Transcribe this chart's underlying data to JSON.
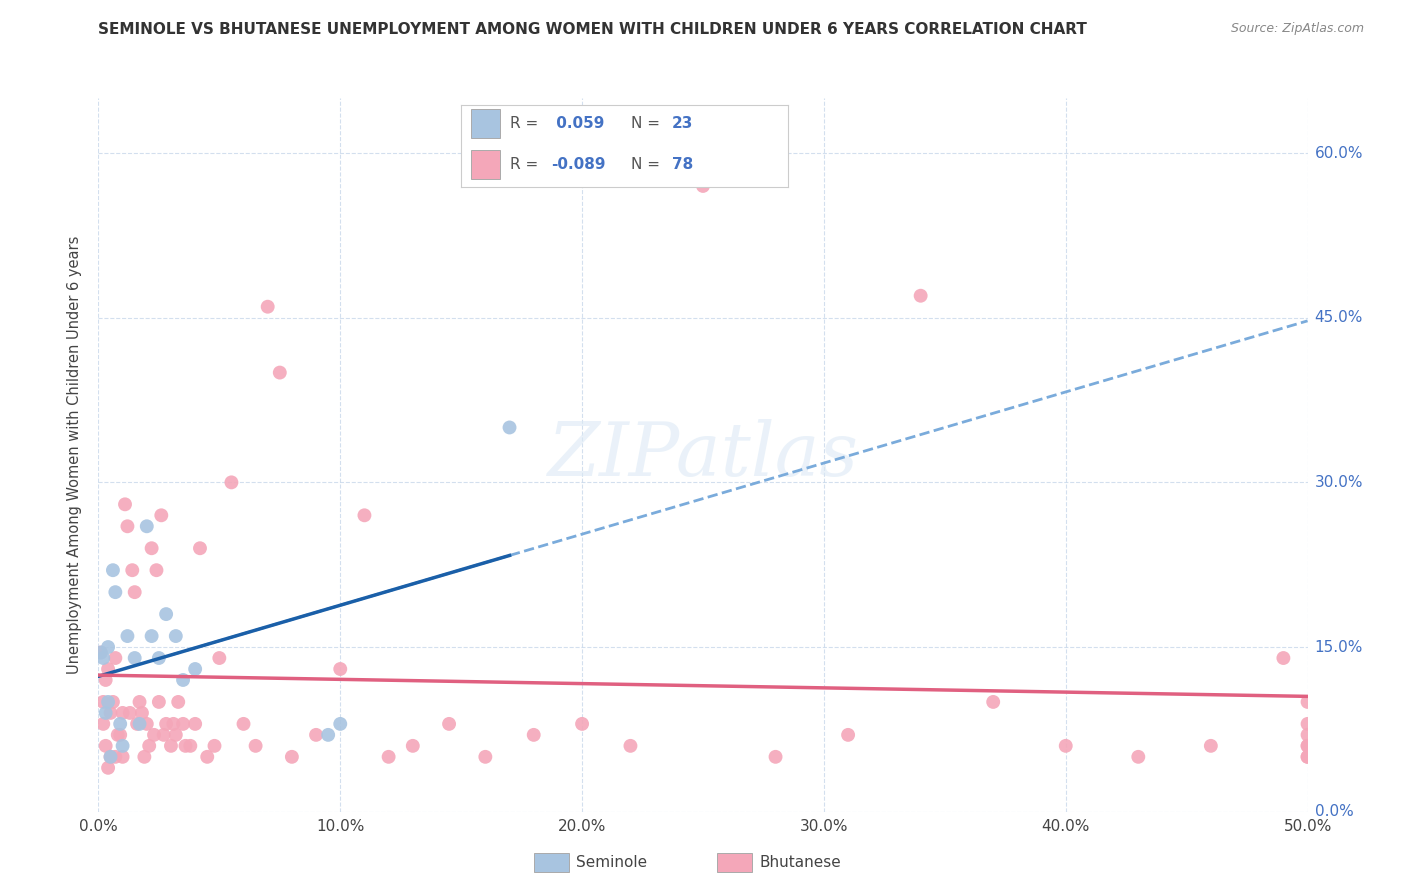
{
  "title": "SEMINOLE VS BHUTANESE UNEMPLOYMENT AMONG WOMEN WITH CHILDREN UNDER 6 YEARS CORRELATION CHART",
  "source": "Source: ZipAtlas.com",
  "ylabel": "Unemployment Among Women with Children Under 6 years",
  "xlim": [
    0,
    0.5
  ],
  "ylim": [
    0,
    0.65
  ],
  "seminole_color": "#a8c4e0",
  "bhutanese_color": "#f4a7b9",
  "seminole_line_color": "#1a5fa8",
  "bhutanese_line_color": "#e06080",
  "seminole_dash_color": "#7aabdb",
  "legend_seminole_R": "0.059",
  "legend_seminole_N": "23",
  "legend_bhutanese_R": "-0.089",
  "legend_bhutanese_N": "78",
  "watermark": "ZIPatlas",
  "x_tick_vals": [
    0.0,
    0.1,
    0.2,
    0.3,
    0.4,
    0.5
  ],
  "x_tick_labels": [
    "0.0%",
    "10.0%",
    "20.0%",
    "30.0%",
    "40.0%",
    "50.0%"
  ],
  "y_tick_vals": [
    0.0,
    0.15,
    0.3,
    0.45,
    0.6
  ],
  "y_tick_labels": [
    "0.0%",
    "15.0%",
    "30.0%",
    "45.0%",
    "60.0%"
  ],
  "seminole_x": [
    0.001,
    0.002,
    0.003,
    0.004,
    0.004,
    0.005,
    0.006,
    0.007,
    0.009,
    0.01,
    0.012,
    0.015,
    0.017,
    0.02,
    0.022,
    0.025,
    0.028,
    0.032,
    0.035,
    0.04,
    0.095,
    0.1,
    0.17
  ],
  "seminole_y": [
    0.145,
    0.14,
    0.09,
    0.15,
    0.1,
    0.05,
    0.22,
    0.2,
    0.08,
    0.06,
    0.16,
    0.14,
    0.08,
    0.26,
    0.16,
    0.14,
    0.18,
    0.16,
    0.12,
    0.13,
    0.07,
    0.08,
    0.35
  ],
  "bhutanese_x": [
    0.001,
    0.002,
    0.002,
    0.003,
    0.003,
    0.004,
    0.004,
    0.005,
    0.005,
    0.006,
    0.007,
    0.007,
    0.008,
    0.009,
    0.01,
    0.01,
    0.011,
    0.012,
    0.013,
    0.014,
    0.015,
    0.016,
    0.017,
    0.018,
    0.019,
    0.02,
    0.021,
    0.022,
    0.023,
    0.024,
    0.025,
    0.026,
    0.027,
    0.028,
    0.03,
    0.031,
    0.032,
    0.033,
    0.035,
    0.036,
    0.038,
    0.04,
    0.042,
    0.045,
    0.048,
    0.05,
    0.055,
    0.06,
    0.065,
    0.07,
    0.075,
    0.08,
    0.09,
    0.1,
    0.11,
    0.12,
    0.13,
    0.145,
    0.16,
    0.18,
    0.2,
    0.22,
    0.25,
    0.28,
    0.31,
    0.34,
    0.37,
    0.4,
    0.43,
    0.46,
    0.49,
    0.5,
    0.5,
    0.5,
    0.5,
    0.5,
    0.5,
    0.5
  ],
  "bhutanese_y": [
    0.145,
    0.1,
    0.08,
    0.12,
    0.06,
    0.04,
    0.13,
    0.09,
    0.05,
    0.1,
    0.14,
    0.05,
    0.07,
    0.07,
    0.09,
    0.05,
    0.28,
    0.26,
    0.09,
    0.22,
    0.2,
    0.08,
    0.1,
    0.09,
    0.05,
    0.08,
    0.06,
    0.24,
    0.07,
    0.22,
    0.1,
    0.27,
    0.07,
    0.08,
    0.06,
    0.08,
    0.07,
    0.1,
    0.08,
    0.06,
    0.06,
    0.08,
    0.24,
    0.05,
    0.06,
    0.14,
    0.3,
    0.08,
    0.06,
    0.46,
    0.4,
    0.05,
    0.07,
    0.13,
    0.27,
    0.05,
    0.06,
    0.08,
    0.05,
    0.07,
    0.08,
    0.06,
    0.57,
    0.05,
    0.07,
    0.47,
    0.1,
    0.06,
    0.05,
    0.06,
    0.14,
    0.06,
    0.1,
    0.06,
    0.08,
    0.05,
    0.05,
    0.07
  ]
}
